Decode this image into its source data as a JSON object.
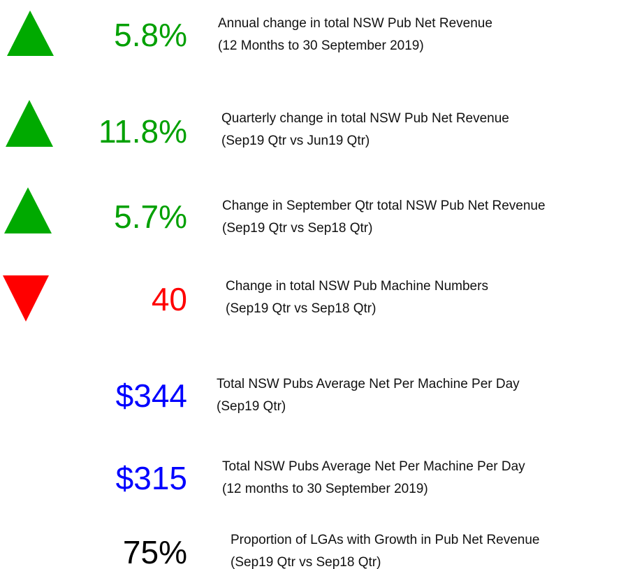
{
  "kpis": [
    {
      "value": "5.8%",
      "color": "#00a000",
      "trend": "up",
      "label": [
        "Annual change in total NSW Pub Net Revenue",
        "(12 Months to 30 September 2019)"
      ]
    },
    {
      "value": "11.8%",
      "color": "#00a000",
      "trend": "up",
      "label": [
        "Quarterly change in total NSW Pub Net Revenue",
        "(Sep19 Qtr vs Jun19 Qtr)"
      ]
    },
    {
      "value": "5.7%",
      "color": "#00a000",
      "trend": "up",
      "label": [
        "Change in September Qtr total NSW Pub Net Revenue",
        "(Sep19 Qtr vs Sep18 Qtr)"
      ]
    },
    {
      "value": "40",
      "color": "#ff0000",
      "trend": "down",
      "label": [
        "Change in total NSW Pub Machine Numbers",
        "(Sep19 Qtr vs Sep18 Qtr)"
      ]
    },
    {
      "value": "$344",
      "color": "#0000ff",
      "label": [
        "Total NSW Pubs Average Net Per Machine Per Day",
        "(Sep19 Qtr)"
      ]
    },
    {
      "value": "$315",
      "color": "#0000ff",
      "label": [
        "Total NSW Pubs Average Net Per Machine Per Day",
        "(12 months to 30 September 2019)"
      ]
    },
    {
      "value": "75%",
      "color": "#000000",
      "label": [
        "Proportion of LGAs with Growth in Pub Net Revenue",
        "(Sep19 Qtr vs Sep18 Qtr)"
      ]
    }
  ]
}
